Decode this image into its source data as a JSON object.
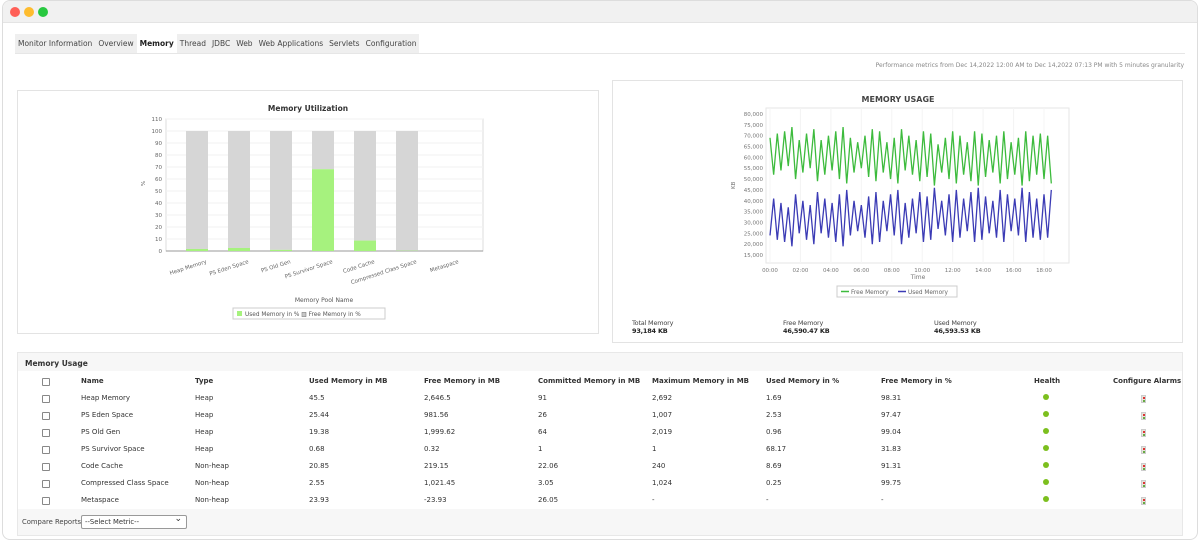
{
  "window": {
    "controls": [
      {
        "name": "close",
        "color": "#ff5f57"
      },
      {
        "name": "minimize",
        "color": "#febc2e"
      },
      {
        "name": "maximize",
        "color": "#28c840"
      }
    ]
  },
  "tabs": [
    {
      "label": "Monitor Information"
    },
    {
      "label": "Overview"
    },
    {
      "label": "Memory",
      "active": true
    },
    {
      "label": "Thread"
    },
    {
      "label": "JDBC"
    },
    {
      "label": "Web"
    },
    {
      "label": "Web Applications"
    },
    {
      "label": "Servlets"
    },
    {
      "label": "Configuration"
    }
  ],
  "performance_note": "Performance metrics from Dec 14,2022 12:00 AM to Dec 14,2022 07:13 PM with 5 minutes granularity",
  "chart_data": [
    {
      "type": "bar",
      "stacked": true,
      "title": "Memory Utilization",
      "xlabel": "Memory Pool Name",
      "ylabel": "%",
      "ylim": [
        0,
        110
      ],
      "yticks": [
        0,
        10,
        20,
        30,
        40,
        50,
        60,
        70,
        80,
        90,
        100,
        110
      ],
      "grid": true,
      "legend_placement": "bottom",
      "categories": [
        "Heap Memory",
        "PS Eden Space",
        "PS Old Gen",
        "PS Survivor Space",
        "Code Cache",
        "Compressed Class Space",
        "Metaspace"
      ],
      "series": [
        {
          "name": "Used Memory in %",
          "color": "#a6f27e",
          "values": [
            1.69,
            2.53,
            0.96,
            68.17,
            8.69,
            0.25,
            null
          ]
        },
        {
          "name": "Free Memory in %",
          "color": "#d6d6d6",
          "values": [
            98.31,
            97.47,
            99.04,
            31.83,
            91.31,
            99.75,
            null
          ]
        }
      ],
      "legend_text": "Used Memory in % ▥ Free Memory in %"
    },
    {
      "type": "line",
      "title": "MEMORY USAGE",
      "xlabel": "Time",
      "ylabel": "KB",
      "ylim": [
        15000,
        80000
      ],
      "yticks": [
        "15,000",
        "20,000",
        "25,000",
        "30,000",
        "35,000",
        "40,000",
        "45,000",
        "50,000",
        "55,000",
        "60,000",
        "65,000",
        "70,000",
        "75,000",
        "80,000"
      ],
      "xticks": [
        "00:00",
        "02:00",
        "04:00",
        "06:00",
        "08:00",
        "10:00",
        "12:00",
        "14:00",
        "16:00",
        "18:00"
      ],
      "grid": true,
      "legend_placement": "bottom",
      "x": [
        "00:00",
        "00:15",
        "00:30",
        "00:45",
        "01:00",
        "01:15",
        "01:30",
        "01:45",
        "02:00",
        "02:15",
        "02:30",
        "02:45",
        "03:00",
        "03:15",
        "03:30",
        "03:45",
        "04:00",
        "04:15",
        "04:30",
        "04:45",
        "05:00",
        "05:15",
        "05:30",
        "05:45",
        "06:00",
        "06:15",
        "06:30",
        "06:45",
        "07:00",
        "07:15",
        "07:30",
        "07:45",
        "08:00",
        "08:15",
        "08:30",
        "08:45",
        "09:00",
        "09:15",
        "09:30",
        "09:45",
        "10:00",
        "10:15",
        "10:30",
        "10:45",
        "11:00",
        "11:15",
        "11:30",
        "11:45",
        "12:00",
        "12:15",
        "12:30",
        "12:45",
        "13:00",
        "13:15",
        "13:30",
        "13:45",
        "14:00",
        "14:15",
        "14:30",
        "14:45",
        "15:00",
        "15:15",
        "15:30",
        "15:45",
        "16:00",
        "16:15",
        "16:30",
        "16:45",
        "17:00",
        "17:15",
        "17:30",
        "17:45",
        "18:00",
        "18:15",
        "18:30",
        "18:45",
        "19:00",
        "19:15"
      ],
      "series": [
        {
          "name": "Free Memory",
          "color": "#3dbb3d",
          "values": [
            69000,
            52000,
            71000,
            54000,
            72000,
            56000,
            74000,
            50000,
            68000,
            53000,
            71000,
            55000,
            73000,
            49000,
            68000,
            52000,
            70000,
            54000,
            72000,
            50000,
            74000,
            48000,
            69000,
            53000,
            67000,
            55000,
            70000,
            51000,
            73000,
            49000,
            72000,
            53000,
            67000,
            50000,
            69000,
            48000,
            73000,
            54000,
            70000,
            52000,
            68000,
            49000,
            72000,
            51000,
            71000,
            47000,
            66000,
            53000,
            69000,
            50000,
            72000,
            48000,
            70000,
            52000,
            67000,
            49000,
            72000,
            47000,
            71000,
            51000,
            68000,
            53000,
            70000,
            48000,
            72000,
            50000,
            67000,
            52000,
            69000,
            47000,
            72000,
            49000,
            70000,
            52000,
            71000,
            50000,
            70000,
            48000
          ]
        },
        {
          "name": "Used Memory",
          "color": "#3b3bb5",
          "values": [
            24000,
            41000,
            22000,
            39000,
            21000,
            37000,
            19000,
            43000,
            25000,
            40000,
            22000,
            38000,
            20000,
            44000,
            25000,
            41000,
            23000,
            39000,
            21000,
            43000,
            19000,
            45000,
            24000,
            40000,
            26000,
            38000,
            23000,
            42000,
            20000,
            44000,
            21000,
            40000,
            26000,
            43000,
            24000,
            45000,
            20000,
            39000,
            23000,
            41000,
            25000,
            44000,
            21000,
            42000,
            22000,
            46000,
            27000,
            40000,
            24000,
            43000,
            21000,
            45000,
            23000,
            41000,
            26000,
            44000,
            21000,
            46000,
            22000,
            42000,
            25000,
            40000,
            23000,
            45000,
            21000,
            43000,
            26000,
            41000,
            24000,
            46000,
            21000,
            44000,
            23000,
            41000,
            22000,
            43000,
            23000,
            45000
          ]
        }
      ]
    }
  ],
  "memory_stats": [
    {
      "label": "Total Memory",
      "value": "93,184 KB"
    },
    {
      "label": "Free Memory",
      "value": "46,590.47 KB"
    },
    {
      "label": "Used Memory",
      "value": "46,593.53 KB"
    }
  ],
  "table": {
    "title": "Memory Usage",
    "columns": [
      "Name",
      "Type",
      "Used Memory in MB",
      "Free Memory in MB",
      "Committed Memory in MB",
      "Maximum Memory in MB",
      "Used Memory in %",
      "Free Memory in %",
      "Health",
      "Configure Alarms"
    ],
    "rows": [
      [
        "Heap Memory",
        "Heap",
        "45.5",
        "2,646.5",
        "91",
        "2,692",
        "1.69",
        "98.31"
      ],
      [
        "PS Eden Space",
        "Heap",
        "25.44",
        "981.56",
        "26",
        "1,007",
        "2.53",
        "97.47"
      ],
      [
        "PS Old Gen",
        "Heap",
        "19.38",
        "1,999.62",
        "64",
        "2,019",
        "0.96",
        "99.04"
      ],
      [
        "PS Survivor Space",
        "Heap",
        "0.68",
        "0.32",
        "1",
        "1",
        "68.17",
        "31.83"
      ],
      [
        "Code Cache",
        "Non-heap",
        "20.85",
        "219.15",
        "22.06",
        "240",
        "8.69",
        "91.31"
      ],
      [
        "Compressed Class Space",
        "Non-heap",
        "2.55",
        "1,021.45",
        "3.05",
        "1,024",
        "0.25",
        "99.75"
      ],
      [
        "Metaspace",
        "Non-heap",
        "23.93",
        "-23.93",
        "26.05",
        "-",
        "-",
        "-"
      ]
    ],
    "health_color": "#7cbf1e",
    "compare_label": "Compare Reports",
    "compare_selected": "--Select Metric--"
  }
}
